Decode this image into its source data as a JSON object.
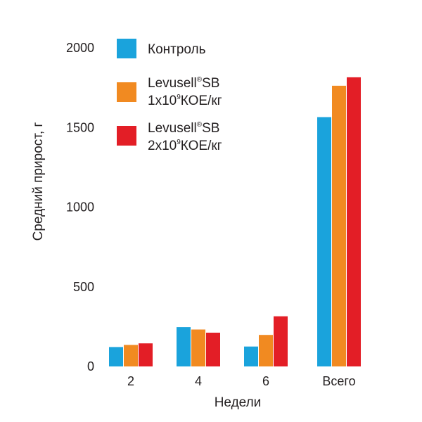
{
  "chart_data": {
    "type": "bar",
    "categories": [
      "2",
      "4",
      "6",
      "Всего"
    ],
    "series": [
      {
        "name": "Контроль",
        "values": [
          122,
          247,
          125,
          1565
        ],
        "color": "#1aa3dc"
      },
      {
        "name_parts": {
          "line1": "Levusell",
          "sup1": "®",
          "line1b": "SB",
          "line2a": "1x10",
          "sup2": "9",
          "line2b": "КОЕ/кг"
        },
        "values": [
          135,
          232,
          198,
          1762
        ],
        "color": "#f18a21"
      },
      {
        "name_parts": {
          "line1": "Levusell",
          "sup1": "®",
          "line1b": "SB",
          "line2a": "2x10",
          "sup2": "9",
          "line2b": "КОЕ/кг"
        },
        "values": [
          145,
          212,
          315,
          1815
        ],
        "color": "#e31e26"
      }
    ],
    "xlabel": "Недели",
    "ylabel": "Средний прирост, г",
    "ylim": [
      0,
      2000
    ],
    "yticks": [
      "0",
      "500",
      "1000",
      "1500",
      "2000"
    ],
    "grid": false,
    "legend_position": "top-left"
  }
}
